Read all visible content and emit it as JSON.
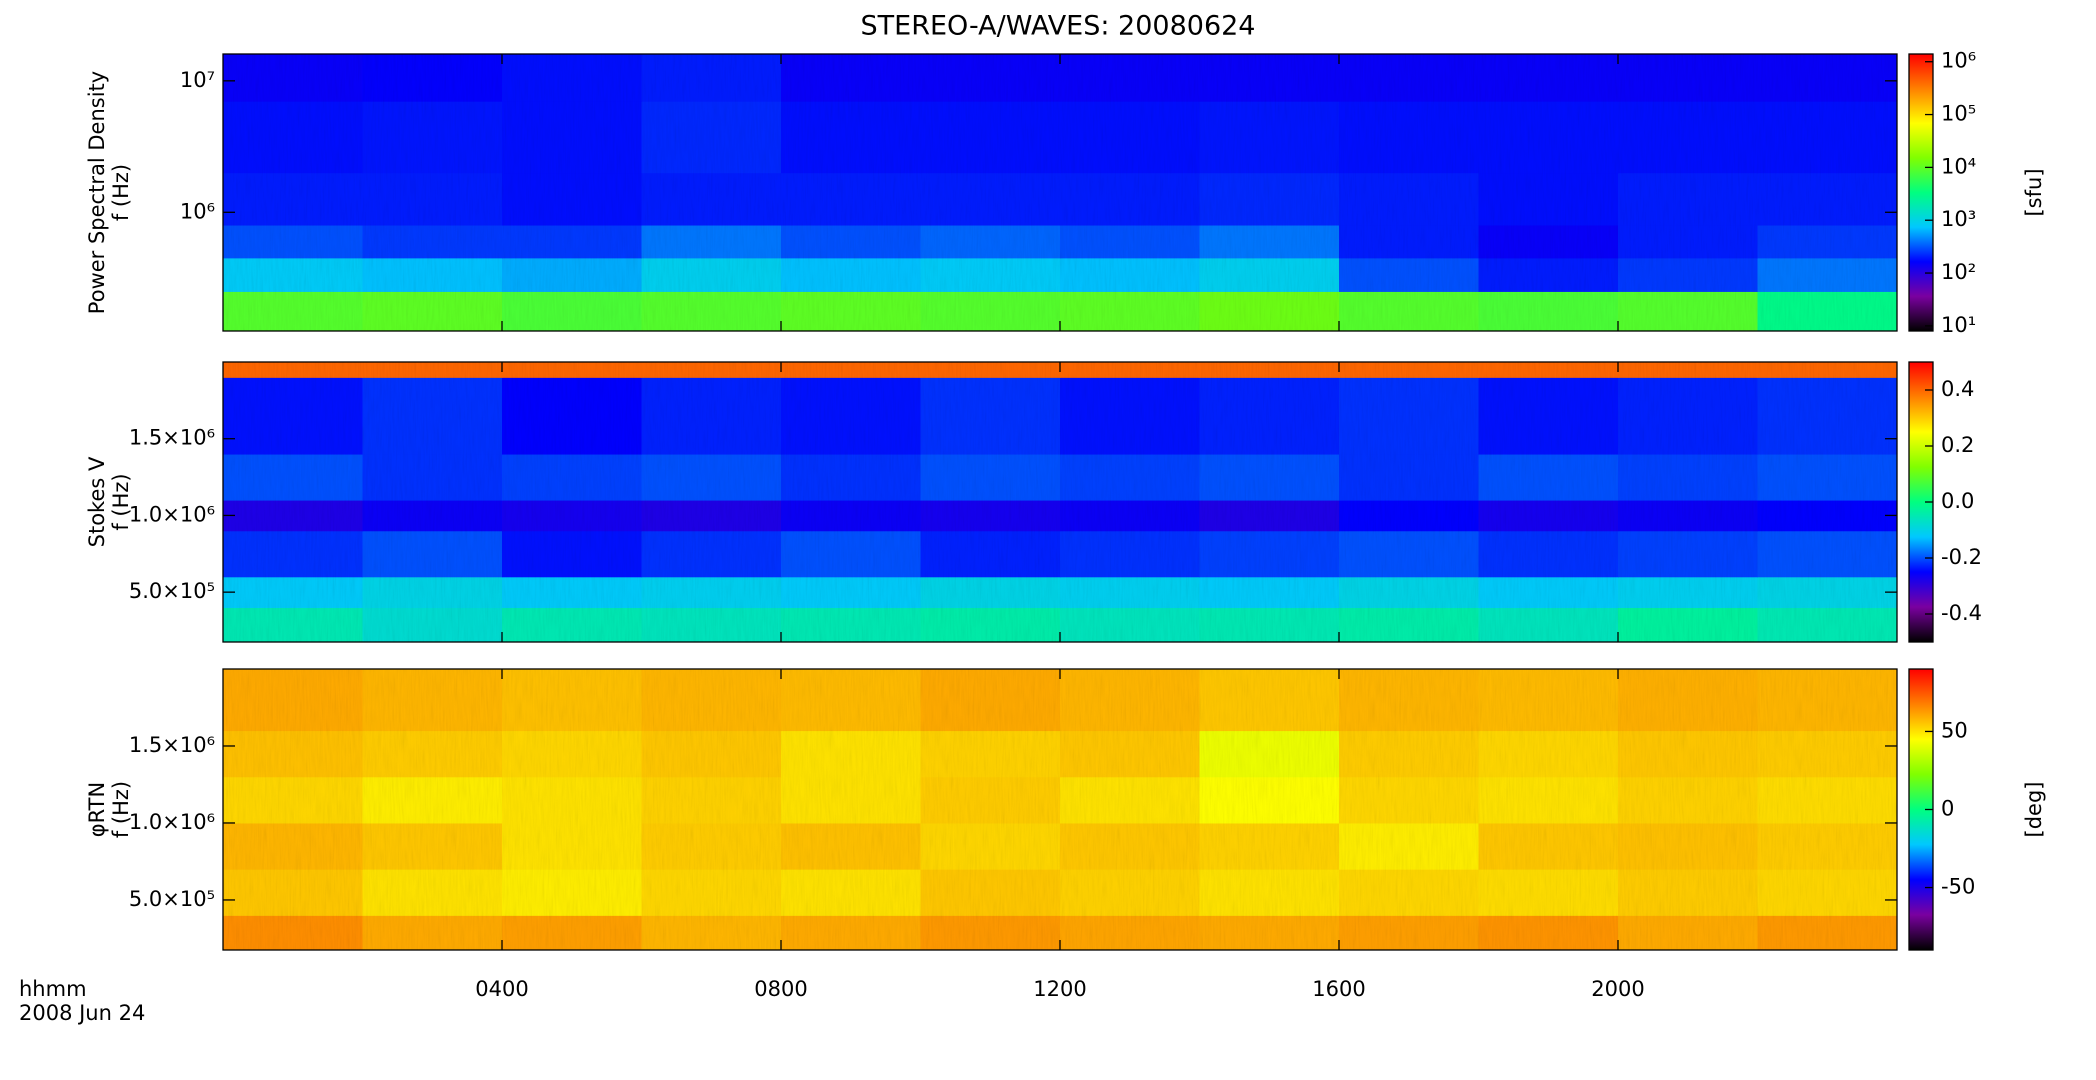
{
  "title": "STEREO-A/WAVES: 20080624",
  "time_label": "hhmm",
  "date_label": "2008 Jun 24",
  "chart_data": [
    {
      "type": "heatmap",
      "ylabel": [
        "Power Spectral Density",
        "f (Hz)"
      ],
      "ylog": true,
      "xlim": [
        0,
        24
      ],
      "ylim": [
        125000,
        16000000
      ],
      "yticks": [
        {
          "value": 1000000,
          "label": "10⁶"
        },
        {
          "value": 10000000,
          "label": "10⁷"
        }
      ],
      "x_bins": [
        0,
        2,
        4,
        6,
        8,
        10,
        12,
        14,
        16,
        18,
        20,
        22,
        24
      ],
      "y_bins": [
        125000,
        250000,
        450000,
        800000,
        2000000,
        7000000,
        16000000
      ],
      "values": [
        [
          9000,
          10000,
          8000,
          9000,
          10000,
          9000,
          10000,
          12000,
          9000,
          8000,
          9000,
          3000
        ],
        [
          800,
          700,
          600,
          900,
          700,
          800,
          700,
          900,
          300,
          200,
          250,
          400
        ],
        [
          300,
          250,
          250,
          400,
          300,
          350,
          300,
          400,
          200,
          150,
          200,
          250
        ],
        [
          200,
          200,
          180,
          200,
          200,
          200,
          200,
          220,
          200,
          180,
          200,
          200
        ],
        [
          180,
          190,
          180,
          220,
          180,
          180,
          180,
          190,
          180,
          180,
          180,
          180
        ],
        [
          150,
          160,
          180,
          200,
          150,
          150,
          150,
          150,
          150,
          150,
          150,
          150
        ]
      ],
      "clog": true,
      "clim": [
        8,
        1400000
      ],
      "cticks": [
        {
          "value": 10,
          "label": "10¹"
        },
        {
          "value": 100,
          "label": "10²"
        },
        {
          "value": 1000,
          "label": "10³"
        },
        {
          "value": 10000,
          "label": "10⁴"
        },
        {
          "value": 100000,
          "label": "10⁵"
        },
        {
          "value": 1000000,
          "label": "10⁶"
        }
      ],
      "clabel": "[sfu]",
      "colormap": [
        "#000000",
        "#7a00a0",
        "#0000ff",
        "#00c8ff",
        "#00ff80",
        "#80ff00",
        "#ffff00",
        "#ff8000",
        "#ff0000"
      ]
    },
    {
      "type": "heatmap",
      "ylabel": [
        "Stokes V",
        "f (Hz)"
      ],
      "ylog": false,
      "xlim": [
        0,
        24
      ],
      "ylim": [
        175000,
        2000000
      ],
      "yticks": [
        {
          "value": 500000,
          "label": "5.0×10⁵"
        },
        {
          "value": 1000000,
          "label": "1.0×10⁶"
        },
        {
          "value": 1500000,
          "label": "1.5×10⁶"
        }
      ],
      "x_bins": [
        0,
        2,
        4,
        6,
        8,
        10,
        12,
        14,
        16,
        18,
        20,
        22,
        24
      ],
      "y_bins": [
        175000,
        400000,
        600000,
        900000,
        1100000,
        1400000,
        1900000,
        2000000
      ],
      "values": [
        [
          -0.05,
          -0.08,
          -0.05,
          -0.06,
          -0.05,
          -0.04,
          -0.06,
          -0.05,
          -0.04,
          -0.06,
          -0.03,
          -0.05
        ],
        [
          -0.12,
          -0.1,
          -0.12,
          -0.11,
          -0.12,
          -0.1,
          -0.11,
          -0.12,
          -0.1,
          -0.12,
          -0.11,
          -0.1
        ],
        [
          -0.22,
          -0.2,
          -0.24,
          -0.22,
          -0.2,
          -0.23,
          -0.22,
          -0.21,
          -0.2,
          -0.22,
          -0.21,
          -0.2
        ],
        [
          -0.28,
          -0.26,
          -0.27,
          -0.28,
          -0.26,
          -0.27,
          -0.26,
          -0.28,
          -0.25,
          -0.27,
          -0.26,
          -0.25
        ],
        [
          -0.2,
          -0.22,
          -0.21,
          -0.2,
          -0.22,
          -0.2,
          -0.21,
          -0.2,
          -0.22,
          -0.2,
          -0.21,
          -0.2
        ],
        [
          -0.24,
          -0.22,
          -0.25,
          -0.23,
          -0.24,
          -0.22,
          -0.24,
          -0.23,
          -0.22,
          -0.24,
          -0.23,
          -0.22
        ],
        [
          0.4,
          0.4,
          0.4,
          0.4,
          0.4,
          0.4,
          0.4,
          0.4,
          0.4,
          0.4,
          0.4,
          0.4
        ]
      ],
      "clog": false,
      "clim": [
        -0.5,
        0.5
      ],
      "cticks": [
        {
          "value": -0.4,
          "label": "-0.4"
        },
        {
          "value": -0.2,
          "label": "-0.2"
        },
        {
          "value": 0,
          "label": "0.0"
        },
        {
          "value": 0.2,
          "label": "0.2"
        },
        {
          "value": 0.4,
          "label": "0.4"
        }
      ],
      "colormap": [
        "#000000",
        "#7a00a0",
        "#0000ff",
        "#00c8ff",
        "#00ff80",
        "#80ff00",
        "#ffff00",
        "#ff8000",
        "#ff0000"
      ]
    },
    {
      "type": "heatmap",
      "ylabel": [
        "φRTN",
        "f (Hz)"
      ],
      "ylog": false,
      "xlim": [
        0,
        24
      ],
      "ylim": [
        175000,
        2000000
      ],
      "yticks": [
        {
          "value": 500000,
          "label": "5.0×10⁵"
        },
        {
          "value": 1000000,
          "label": "1.0×10⁶"
        },
        {
          "value": 1500000,
          "label": "1.5×10⁶"
        }
      ],
      "xticks": [
        {
          "value": 4,
          "label": "0400"
        },
        {
          "value": 8,
          "label": "0800"
        },
        {
          "value": 12,
          "label": "1200"
        },
        {
          "value": 16,
          "label": "1600"
        },
        {
          "value": 20,
          "label": "2000"
        }
      ],
      "x_bins": [
        0,
        2,
        4,
        6,
        8,
        10,
        12,
        14,
        16,
        18,
        20,
        22,
        24
      ],
      "y_bins": [
        175000,
        400000,
        700000,
        1000000,
        1300000,
        1600000,
        2000000
      ],
      "values": [
        [
          65,
          60,
          62,
          58,
          60,
          63,
          61,
          60,
          62,
          64,
          60,
          63
        ],
        [
          55,
          50,
          48,
          52,
          50,
          55,
          53,
          50,
          52,
          51,
          54,
          52
        ],
        [
          58,
          55,
          50,
          54,
          56,
          52,
          55,
          53,
          48,
          55,
          56,
          54
        ],
        [
          52,
          48,
          50,
          53,
          50,
          54,
          50,
          45,
          52,
          50,
          53,
          51
        ],
        [
          56,
          54,
          52,
          55,
          50,
          53,
          55,
          42,
          54,
          52,
          55,
          54
        ],
        [
          60,
          58,
          56,
          58,
          57,
          60,
          58,
          55,
          58,
          57,
          59,
          58
        ]
      ],
      "clog": false,
      "clim": [
        -90,
        90
      ],
      "cticks": [
        -50,
        0,
        50
      ],
      "clabel": "[deg]",
      "colormap": [
        "#000000",
        "#7a00a0",
        "#0000ff",
        "#00c8ff",
        "#00ff80",
        "#80ff00",
        "#ffff00",
        "#ff8000",
        "#ff0000"
      ]
    }
  ]
}
